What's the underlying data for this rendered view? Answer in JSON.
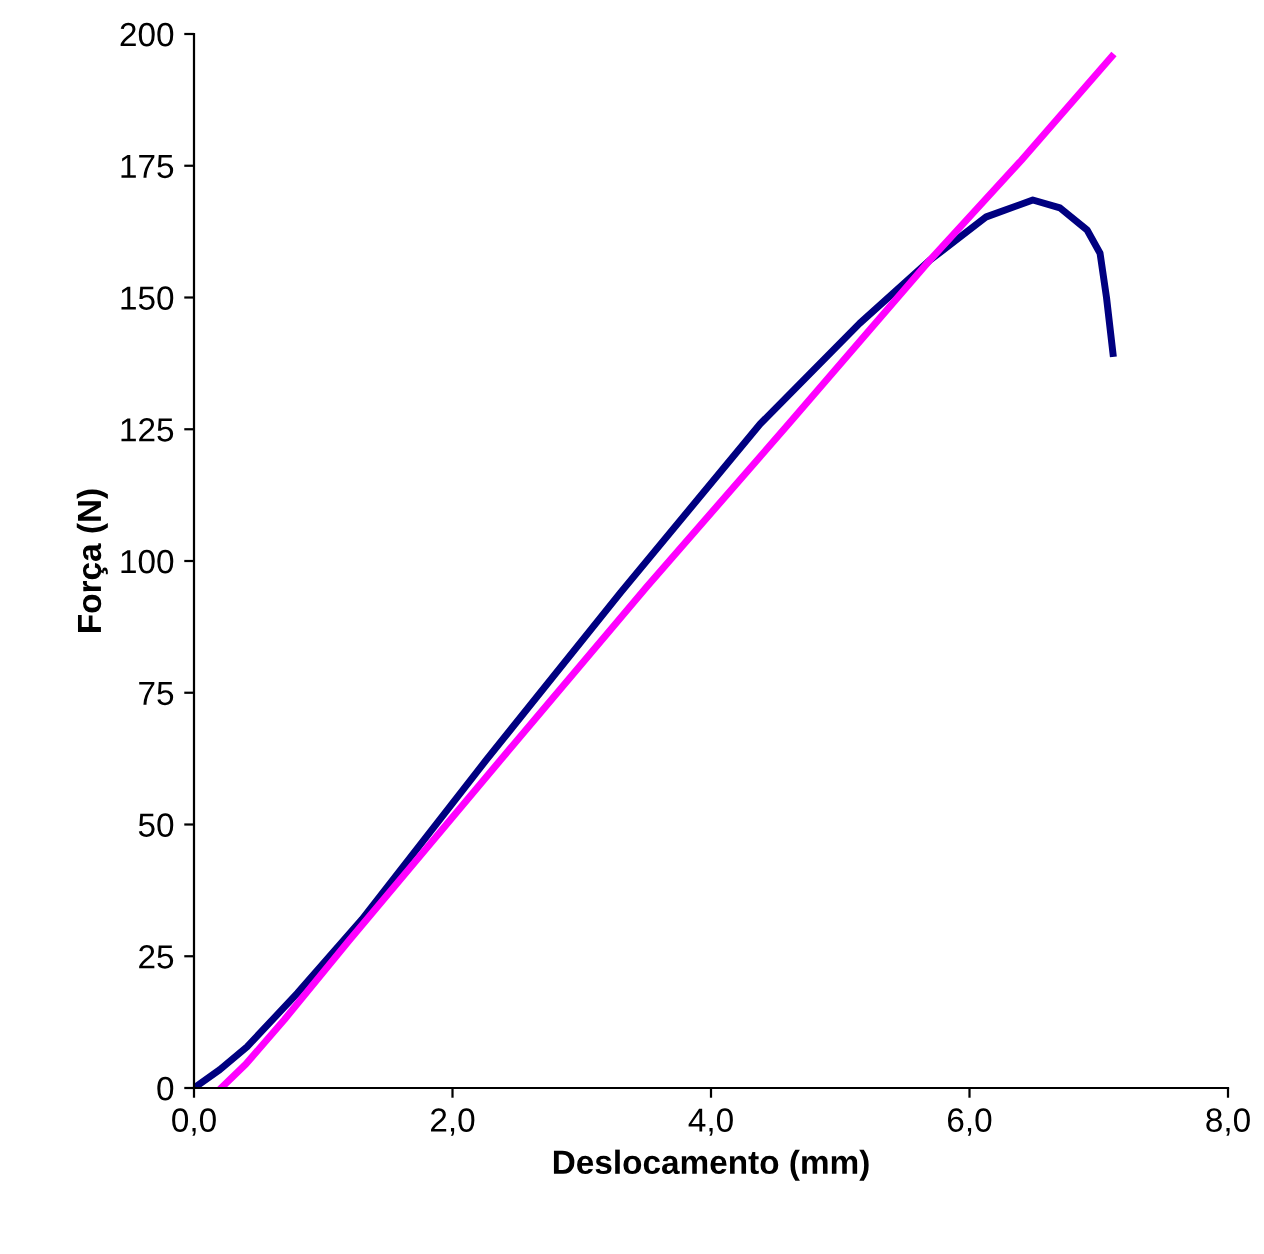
{
  "chart_data": {
    "type": "line",
    "xlabel": "Deslocamento (mm)",
    "ylabel": "Força (N)",
    "xlim": [
      0,
      8
    ],
    "ylim": [
      0,
      200
    ],
    "xticks": [
      {
        "value": 0,
        "label": "0,0"
      },
      {
        "value": 2,
        "label": "2,0"
      },
      {
        "value": 4,
        "label": "4,0"
      },
      {
        "value": 6,
        "label": "6,0"
      },
      {
        "value": 8,
        "label": "8,0"
      }
    ],
    "yticks": [
      0,
      25,
      50,
      75,
      100,
      125,
      150,
      175,
      200
    ],
    "grid": false,
    "legend": false,
    "marker": "none",
    "line_style": "solid",
    "series": [
      {
        "color": "#000080",
        "x": [
          0,
          0.2,
          0.41,
          0.8,
          1.3,
          2.26,
          3.3,
          4.38,
          5.15,
          5.69,
          6.13,
          6.49,
          6.7,
          6.91,
          7.01,
          7.06,
          7.11
        ],
        "values": [
          0,
          3.5,
          7.8,
          18,
          32,
          62.2,
          94,
          126,
          145.1,
          157,
          165.3,
          168.5,
          167,
          162.8,
          158.4,
          150,
          139.4
        ]
      },
      {
        "color": "#ff00ff",
        "x": [
          0.21,
          0.4,
          0.7,
          1.2,
          2.37,
          3.5,
          4.6,
          5.69,
          6.4,
          7.1
        ],
        "values": [
          0,
          4.5,
          13,
          28,
          62.2,
          95,
          126,
          157,
          176,
          195.7
        ]
      }
    ]
  }
}
